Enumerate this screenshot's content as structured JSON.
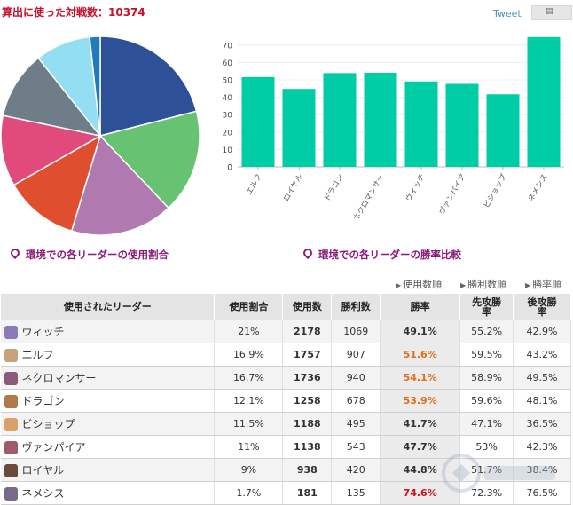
{
  "header": {
    "title": "算出に使った対戦数：10374",
    "tweet": "Tweet",
    "share_icon": "clipboard-icon"
  },
  "captions": {
    "usage_chart": "環境での各リーダーの使用割合",
    "winrate_chart": "環境での各リーダーの勝率比較"
  },
  "sort_options": [
    "使用数順",
    "勝利数順",
    "勝率順"
  ],
  "chart_data": [
    {
      "type": "pie",
      "categories": [
        "ウィッチ",
        "エルフ",
        "ネクロマンサー",
        "ドラゴン",
        "ビショップ",
        "ヴァンパイア",
        "ロイヤル",
        "ネメシス"
      ],
      "values": [
        21,
        16.9,
        16.7,
        12.1,
        11.5,
        11,
        9,
        1.7
      ],
      "colors": [
        "#2e5096",
        "#67c371",
        "#b07ab0",
        "#e04e30",
        "#e14b7c",
        "#6e7d88",
        "#94def4",
        "#1e7bbd"
      ]
    },
    {
      "type": "bar",
      "categories": [
        "エルフ",
        "ロイヤル",
        "ドラゴン",
        "ネクロマンサー",
        "ウィッチ",
        "ヴァンパイア",
        "ビショップ",
        "ネメシス"
      ],
      "values": [
        51.6,
        44.8,
        53.9,
        54.1,
        49.1,
        47.7,
        41.7,
        74.6
      ],
      "ylim": [
        0,
        75
      ],
      "yticks": [
        0,
        10,
        20,
        30,
        40,
        50,
        60,
        70
      ],
      "grid": true,
      "color": "#00cca6"
    }
  ],
  "table": {
    "headers": [
      "使用されたリーダー",
      "使用割合",
      "使用数",
      "勝利数",
      "勝率",
      "先攻勝\n率",
      "後攻勝\n率"
    ],
    "rows": [
      {
        "leader": "ウィッチ",
        "share": "21%",
        "uses": "2178",
        "wins": "1069",
        "rate": "49.1%",
        "first": "55.2%",
        "second": "42.9%"
      },
      {
        "leader": "エルフ",
        "share": "16.9%",
        "uses": "1757",
        "wins": "907",
        "rate": "51.6%",
        "first": "59.5%",
        "second": "43.2%"
      },
      {
        "leader": "ネクロマンサー",
        "share": "16.7%",
        "uses": "1736",
        "wins": "940",
        "rate": "54.1%",
        "first": "58.9%",
        "second": "49.5%"
      },
      {
        "leader": "ドラゴン",
        "share": "12.1%",
        "uses": "1258",
        "wins": "678",
        "rate": "53.9%",
        "first": "59.6%",
        "second": "48.1%"
      },
      {
        "leader": "ビショップ",
        "share": "11.5%",
        "uses": "1188",
        "wins": "495",
        "rate": "41.7%",
        "first": "47.1%",
        "second": "36.5%"
      },
      {
        "leader": "ヴァンパイア",
        "share": "11%",
        "uses": "1138",
        "wins": "543",
        "rate": "47.7%",
        "first": "53%",
        "second": "42.3%"
      },
      {
        "leader": "ロイヤル",
        "share": "9%",
        "uses": "938",
        "wins": "420",
        "rate": "44.8%",
        "first": "51.7%",
        "second": "38.4%"
      },
      {
        "leader": "ネメシス",
        "share": "1.7%",
        "uses": "181",
        "wins": "135",
        "rate": "74.6%",
        "first": "72.3%",
        "second": "76.5%"
      }
    ],
    "avatar_colors": [
      "#8a7ab8",
      "#c9a07a",
      "#8b5a7a",
      "#b07a4a",
      "#d9a06a",
      "#a05a6a",
      "#6a4a3a",
      "#7a6a8a"
    ]
  },
  "watermark_icon": "site-watermark-icon"
}
